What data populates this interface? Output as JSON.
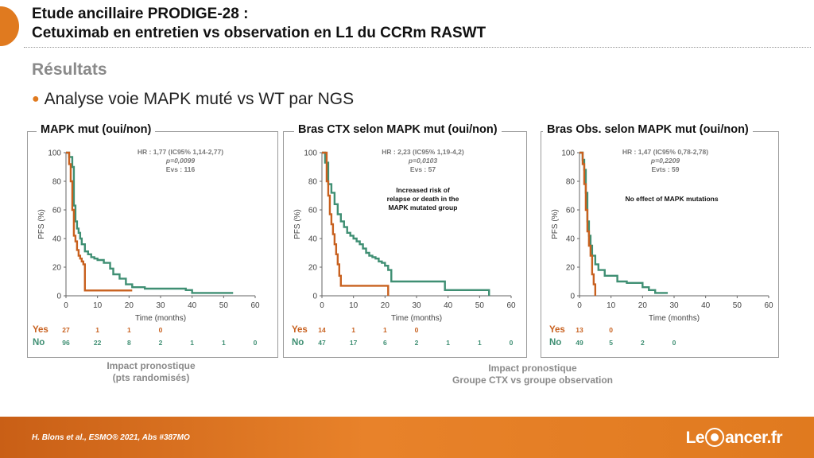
{
  "header": {
    "title_line1": "Etude ancillaire PRODIGE-28 :",
    "title_line2": "Cetuximab en entretien vs observation en L1 du CCRm RASWT",
    "section": "Résultats",
    "bullet": "Analyse voie MAPK muté vs WT par NGS"
  },
  "colors": {
    "yes": "#c8601e",
    "no": "#3f8f73",
    "accent": "#e07a1f"
  },
  "captions": {
    "left_line1": "Impact pronostique",
    "left_line2": "(pts randomisés)",
    "right_line1": "Impact pronostique",
    "right_line2": "Groupe CTX vs groupe observation"
  },
  "footer": {
    "citation": "H. Blons et al., ESMO® 2021, Abs #387MO",
    "logo_before": "Le",
    "logo_after": "ancer.fr"
  },
  "chart_data": [
    {
      "type": "line",
      "title": "MAPK mut (oui/non)",
      "xlabel": "Time (months)",
      "ylabel": "PFS (%)",
      "xlim": [
        0,
        60
      ],
      "ylim": [
        0,
        100
      ],
      "xticks": [
        0,
        10,
        20,
        30,
        40,
        50,
        60
      ],
      "yticks": [
        0,
        20,
        40,
        60,
        80,
        100
      ],
      "stats": [
        "HR : 1,77 (IC95% 1,14-2,77)",
        "p=0,0099",
        "Evs : 116"
      ],
      "annotation": "",
      "series": [
        {
          "name": "Yes",
          "x": [
            0,
            1,
            1.5,
            2,
            2.5,
            3,
            3.5,
            4,
            4.5,
            5,
            5.5,
            6,
            7,
            21
          ],
          "y": [
            100,
            92,
            80,
            60,
            42,
            38,
            32,
            28,
            26,
            24,
            22,
            3.7,
            3.7,
            3.7
          ]
        },
        {
          "name": "No",
          "x": [
            0,
            1,
            2,
            2.5,
            3,
            3.5,
            4,
            4.5,
            5,
            6,
            7,
            8,
            9,
            10,
            12,
            14,
            15,
            17,
            19,
            21,
            25,
            30,
            38,
            40,
            53
          ],
          "y": [
            100,
            97,
            90,
            63,
            52,
            47,
            44,
            40,
            36,
            31,
            29,
            27,
            26,
            25,
            23,
            19,
            15,
            12,
            8,
            6,
            5,
            5,
            4,
            2,
            2
          ]
        }
      ],
      "risk_table": {
        "times": [
          0,
          10,
          20,
          30,
          40,
          50,
          60
        ],
        "rows": [
          {
            "label": "Yes",
            "values": [
              "27",
              "1",
              "1",
              "0"
            ]
          },
          {
            "label": "No",
            "values": [
              "96",
              "22",
              "8",
              "2",
              "1",
              "1",
              "0"
            ]
          }
        ]
      }
    },
    {
      "type": "line",
      "title": "Bras CTX selon MAPK mut (oui/non)",
      "xlabel": "Time (months)",
      "ylabel": "PFS (%)",
      "xlim": [
        0,
        60
      ],
      "ylim": [
        0,
        100
      ],
      "xticks": [
        0,
        10,
        20,
        30,
        40,
        50,
        60
      ],
      "yticks": [
        0,
        20,
        40,
        60,
        80,
        100
      ],
      "stats": [
        "HR : 2,23 (IC95% 1,19-4,2)",
        "p=0,0103",
        "Evs : 57"
      ],
      "annotation": "Increased risk of|relapse or death in the|MAPK mutated group",
      "series": [
        {
          "name": "Yes",
          "x": [
            0,
            1.5,
            2,
            2.5,
            3,
            3.5,
            4,
            4.5,
            5,
            5.5,
            6,
            7,
            21
          ],
          "y": [
            100,
            80,
            70,
            57,
            50,
            43,
            36,
            29,
            22,
            14,
            7,
            7,
            0
          ]
        },
        {
          "name": "No",
          "x": [
            0,
            1,
            2,
            3,
            4,
            5,
            6,
            7,
            8,
            9,
            10,
            11,
            12,
            13,
            14,
            15,
            16,
            17,
            18,
            19,
            20,
            21,
            22,
            25,
            30,
            38,
            39,
            53
          ],
          "y": [
            100,
            93,
            78,
            72,
            64,
            57,
            52,
            48,
            44,
            42,
            40,
            38,
            36,
            33,
            30,
            28,
            27,
            26,
            24,
            23,
            21,
            18,
            10,
            10,
            10,
            10,
            4,
            0
          ]
        }
      ],
      "risk_table": {
        "times": [
          0,
          10,
          20,
          30,
          40,
          50,
          60
        ],
        "rows": [
          {
            "label": "Yes",
            "values": [
              "14",
              "1",
              "1",
              "0"
            ]
          },
          {
            "label": "No",
            "values": [
              "47",
              "17",
              "6",
              "2",
              "1",
              "1",
              "0"
            ]
          }
        ]
      }
    },
    {
      "type": "line",
      "title": "Bras Obs. selon MAPK mut (oui/non)",
      "xlabel": "Time (months)",
      "ylabel": "PFS (%)",
      "xlim": [
        0,
        60
      ],
      "ylim": [
        0,
        100
      ],
      "xticks": [
        0,
        10,
        20,
        30,
        40,
        50,
        60
      ],
      "yticks": [
        0,
        20,
        40,
        60,
        80,
        100
      ],
      "stats": [
        "HR : 1,47 (IC95% 0,78-2,78)",
        "p=0,2209",
        "Evts : 59"
      ],
      "annotation": "No effect of MAPK mutations",
      "series": [
        {
          "name": "Yes",
          "x": [
            0,
            1,
            1.5,
            2,
            2.5,
            3,
            3.5,
            4,
            4.5,
            5
          ],
          "y": [
            100,
            92,
            78,
            60,
            45,
            35,
            28,
            15,
            8,
            0
          ]
        },
        {
          "name": "No",
          "x": [
            0,
            1,
            1.5,
            2,
            2.5,
            3,
            3.5,
            4,
            5,
            6,
            8,
            12,
            15,
            20,
            22,
            24,
            26,
            28
          ],
          "y": [
            100,
            95,
            88,
            72,
            52,
            42,
            35,
            28,
            22,
            18,
            14,
            10,
            9,
            6,
            4,
            2,
            2,
            2
          ]
        }
      ],
      "risk_table": {
        "times": [
          0,
          10,
          20,
          30,
          40,
          50,
          60
        ],
        "rows": [
          {
            "label": "Yes",
            "values": [
              "13",
              "0"
            ]
          },
          {
            "label": "No",
            "values": [
              "49",
              "5",
              "2",
              "0"
            ]
          }
        ]
      }
    }
  ]
}
